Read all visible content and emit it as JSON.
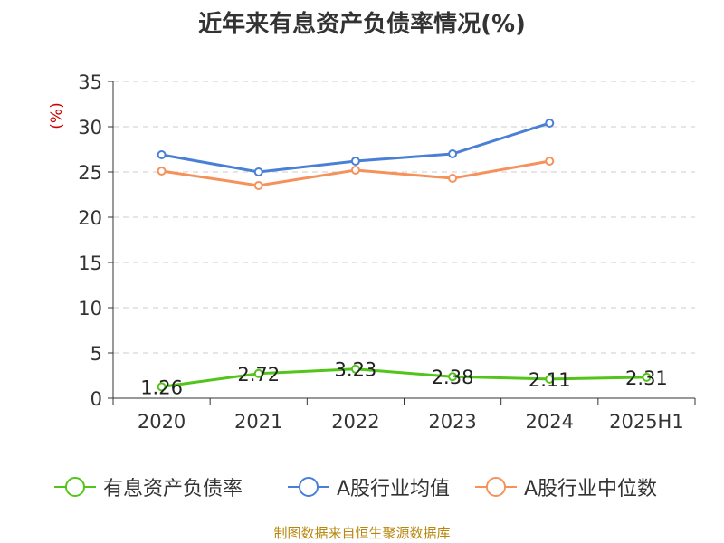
{
  "title": "近年来有息资产负债率情况(%)",
  "source": "制图数据来自恒生聚源数据库",
  "chart_data": {
    "type": "line",
    "title": "近年来有息资产负债率情况(%)",
    "ylabel": "(%)",
    "xlabel": "",
    "categories": [
      "2020",
      "2021",
      "2022",
      "2023",
      "2024",
      "2025H1"
    ],
    "ylim": [
      0,
      35
    ],
    "yticks": [
      0,
      5,
      10,
      15,
      20,
      25,
      30,
      35
    ],
    "grid": true,
    "legend_position": "bottom",
    "series": [
      {
        "name": "有息资产负债率",
        "color": "#52c41a",
        "values": [
          1.26,
          2.72,
          3.23,
          2.38,
          2.11,
          2.31
        ],
        "labels": [
          "1.26",
          "2.72",
          "3.23",
          "2.38",
          "2.11",
          "2.31"
        ]
      },
      {
        "name": "A股行业均值",
        "color": "#4a7fd6",
        "values": [
          26.9,
          25.0,
          26.2,
          27.0,
          30.4,
          null
        ]
      },
      {
        "name": "A股行业中位数",
        "color": "#f5925c",
        "values": [
          25.1,
          23.5,
          25.2,
          24.3,
          26.2,
          null
        ]
      }
    ]
  }
}
